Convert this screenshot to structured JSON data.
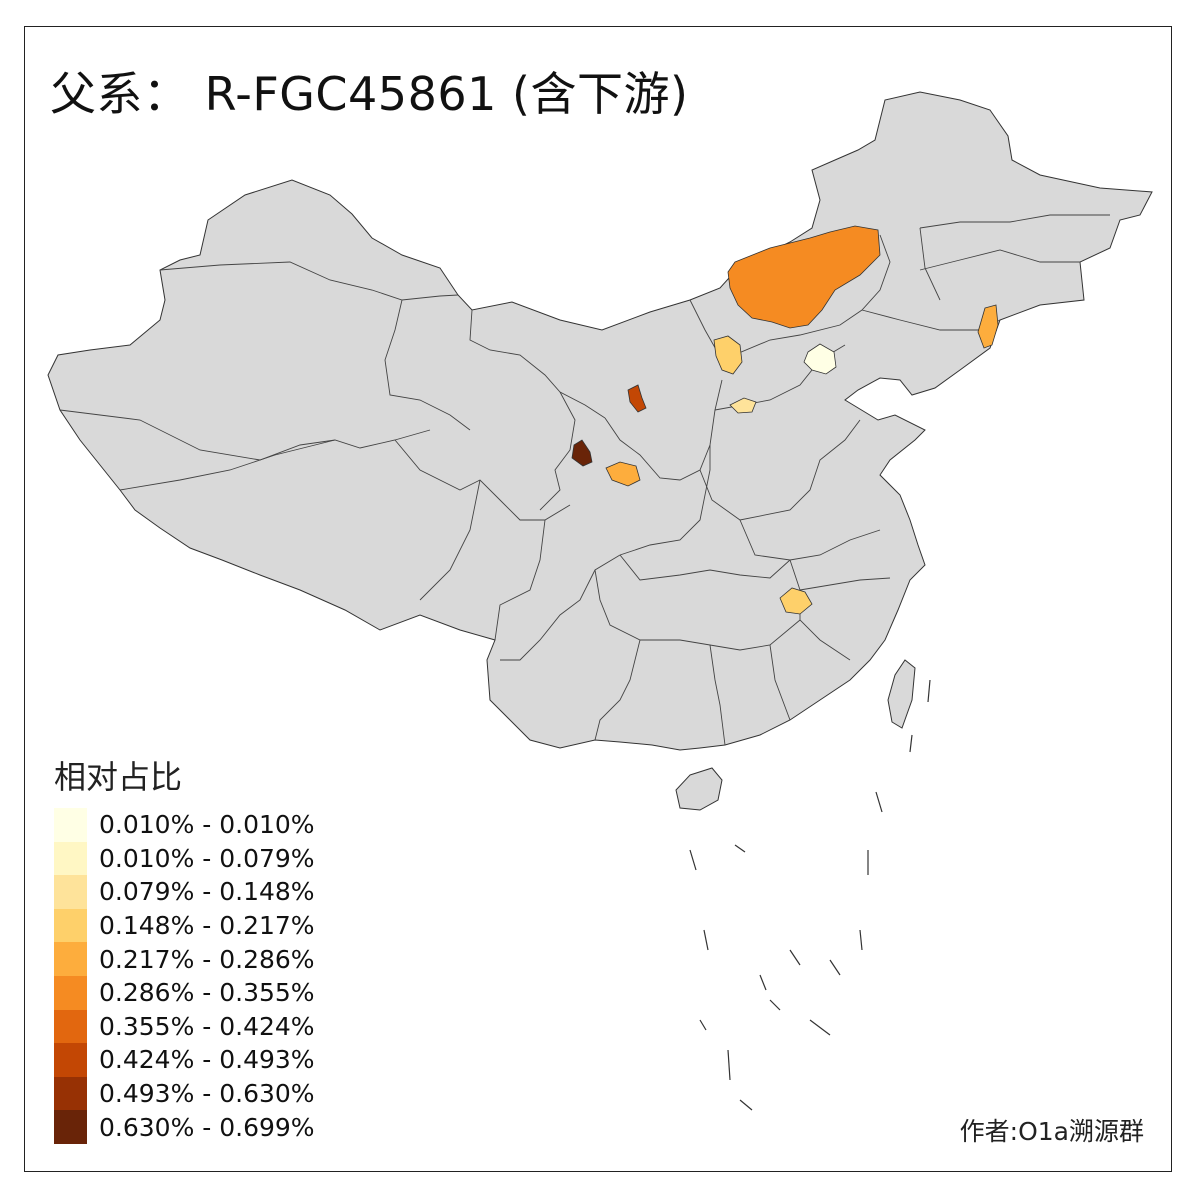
{
  "title": "父系： R-FGC45861 (含下游)",
  "legend": {
    "title": "相对占比",
    "items": [
      {
        "label": "0.010% - 0.010%",
        "color": "#FFFFE5"
      },
      {
        "label": "0.010% - 0.079%",
        "color": "#FFF7C4"
      },
      {
        "label": "0.079% - 0.148%",
        "color": "#FEE39A"
      },
      {
        "label": "0.148% - 0.217%",
        "color": "#FED06A"
      },
      {
        "label": "0.217% - 0.286%",
        "color": "#FDAD3D"
      },
      {
        "label": "0.286% - 0.355%",
        "color": "#F58B22"
      },
      {
        "label": "0.355% - 0.424%",
        "color": "#E2670F"
      },
      {
        "label": "0.424% - 0.493%",
        "color": "#C34704"
      },
      {
        "label": "0.493% - 0.630%",
        "color": "#973104"
      },
      {
        "label": "0.630% - 0.699%",
        "color": "#692408"
      }
    ]
  },
  "author": "作者:O1a溯源群",
  "colors": {
    "land": "#D9D9D9",
    "border": "#333333",
    "background": "#FFFFFF"
  }
}
